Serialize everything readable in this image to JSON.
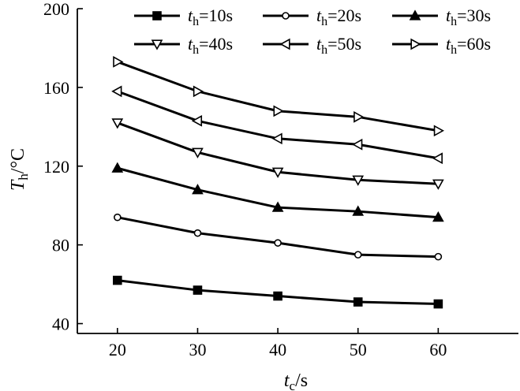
{
  "chart_data": {
    "type": "line",
    "x": [
      20,
      30,
      40,
      50,
      60
    ],
    "xlim": [
      15,
      70
    ],
    "ylim": [
      35,
      200
    ],
    "xticks": [
      20,
      30,
      40,
      50,
      60
    ],
    "yticks": [
      40,
      80,
      120,
      160,
      200
    ],
    "xlabel": {
      "symbol": "t",
      "sub": "c",
      "unit": "/s"
    },
    "ylabel": {
      "symbol": "T",
      "sub": "h",
      "unit": "/°C"
    },
    "grid": false,
    "legend_position": "top",
    "series": [
      {
        "name": "th=10s",
        "symbol": "t",
        "sub": "h",
        "value_text": "=10s",
        "marker": "square-filled",
        "values": [
          62,
          57,
          54,
          51,
          50
        ]
      },
      {
        "name": "th=20s",
        "symbol": "t",
        "sub": "h",
        "value_text": "=20s",
        "marker": "circle-open",
        "values": [
          94,
          86,
          81,
          75,
          74
        ]
      },
      {
        "name": "th=30s",
        "symbol": "t",
        "sub": "h",
        "value_text": "=30s",
        "marker": "triangle-up-filled",
        "values": [
          119,
          108,
          99,
          97,
          94
        ]
      },
      {
        "name": "th=40s",
        "symbol": "t",
        "sub": "h",
        "value_text": "=40s",
        "marker": "triangle-down-open",
        "values": [
          142,
          127,
          117,
          113,
          111
        ]
      },
      {
        "name": "th=50s",
        "symbol": "t",
        "sub": "h",
        "value_text": "=50s",
        "marker": "triangle-left-open",
        "values": [
          158,
          143,
          134,
          131,
          124
        ]
      },
      {
        "name": "th=60s",
        "symbol": "t",
        "sub": "h",
        "value_text": "=60s",
        "marker": "triangle-right-open",
        "values": [
          173,
          158,
          148,
          145,
          138
        ]
      }
    ]
  }
}
